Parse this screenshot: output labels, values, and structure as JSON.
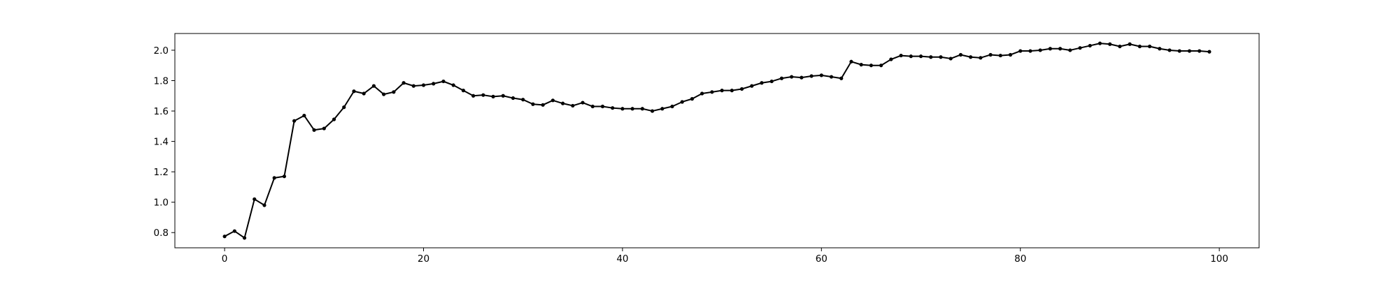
{
  "chart_data": {
    "type": "line",
    "title": "",
    "xlabel": "",
    "ylabel": "",
    "xlim": [
      -5,
      104
    ],
    "ylim": [
      0.7,
      2.11
    ],
    "x_ticks": [
      0,
      20,
      40,
      60,
      80,
      100
    ],
    "y_ticks": [
      0.8,
      1.0,
      1.2,
      1.4,
      1.6,
      1.8,
      2.0
    ],
    "x_tick_labels": [
      "0",
      "20",
      "40",
      "60",
      "80",
      "100"
    ],
    "y_tick_labels": [
      "0.8",
      "1.0",
      "1.2",
      "1.4",
      "1.6",
      "1.8",
      "2.0"
    ],
    "grid": false,
    "line_color": "#000000",
    "marker": "dot",
    "series": [
      {
        "x": [
          0,
          1,
          2,
          3,
          4,
          5,
          6,
          7,
          8,
          9,
          10,
          11,
          12,
          13,
          14,
          15,
          16,
          17,
          18,
          19,
          20,
          21,
          22,
          23,
          24,
          25,
          26,
          27,
          28,
          29,
          30,
          31,
          32,
          33,
          34,
          35,
          36,
          37,
          38,
          39,
          40,
          41,
          42,
          43,
          44,
          45,
          46,
          47,
          48,
          49,
          50,
          51,
          52,
          53,
          54,
          55,
          56,
          57,
          58,
          59,
          60,
          61,
          62,
          63,
          64,
          65,
          66,
          67,
          68,
          69,
          70,
          71,
          72,
          73,
          74,
          75,
          76,
          77,
          78,
          79,
          80,
          81,
          82,
          83,
          84,
          85,
          86,
          87,
          88,
          89,
          90,
          91,
          92,
          93,
          94,
          95,
          96,
          97,
          98,
          99
        ],
        "values": [
          0.775,
          0.81,
          0.765,
          1.02,
          0.98,
          1.16,
          1.17,
          1.535,
          1.57,
          1.475,
          1.485,
          1.545,
          1.625,
          1.73,
          1.715,
          1.765,
          1.71,
          1.725,
          1.785,
          1.765,
          1.77,
          1.78,
          1.795,
          1.77,
          1.735,
          1.7,
          1.705,
          1.695,
          1.7,
          1.685,
          1.675,
          1.645,
          1.64,
          1.67,
          1.65,
          1.635,
          1.655,
          1.63,
          1.63,
          1.62,
          1.615,
          1.615,
          1.615,
          1.6,
          1.615,
          1.63,
          1.66,
          1.68,
          1.715,
          1.725,
          1.735,
          1.735,
          1.745,
          1.765,
          1.785,
          1.795,
          1.815,
          1.825,
          1.82,
          1.83,
          1.835,
          1.825,
          1.815,
          1.925,
          1.905,
          1.9,
          1.9,
          1.94,
          1.965,
          1.96,
          1.96,
          1.955,
          1.955,
          1.945,
          1.97,
          1.955,
          1.95,
          1.97,
          1.965,
          1.97,
          1.995,
          1.995,
          2.0,
          2.01,
          2.01,
          2.0,
          2.015,
          2.03,
          2.045,
          2.04,
          2.025,
          2.04,
          2.025,
          2.025,
          2.01,
          2.0,
          1.995,
          1.995,
          1.995,
          1.99
        ]
      }
    ]
  }
}
